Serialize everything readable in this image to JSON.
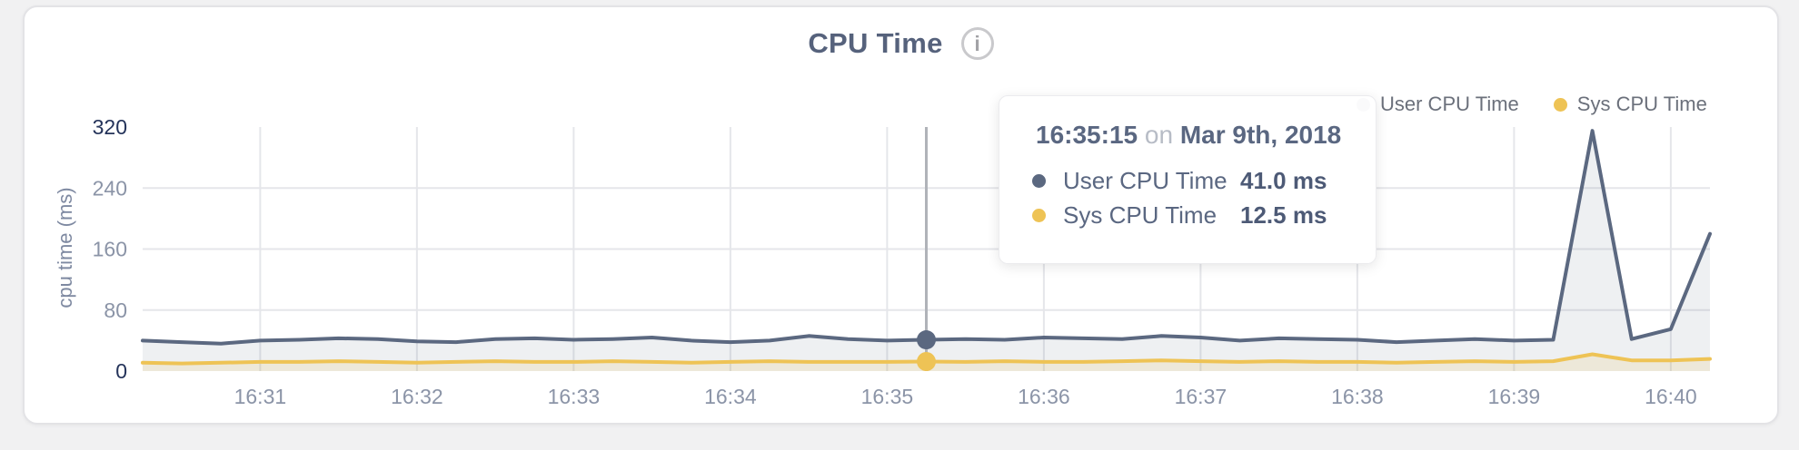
{
  "header": {
    "title": "CPU Time",
    "info_glyph": "i"
  },
  "legend": {
    "items": [
      {
        "label": "User CPU Time",
        "color": "#5b6880"
      },
      {
        "label": "Sys CPU Time",
        "color": "#eec355"
      }
    ]
  },
  "tooltip": {
    "time": "16:35:15",
    "conjunction": "on",
    "date": "Mar 9th, 2018",
    "rows": [
      {
        "label": "User CPU Time",
        "value": "41.0 ms",
        "color": "#5b6880"
      },
      {
        "label": "Sys CPU Time",
        "value": "12.5 ms",
        "color": "#eec355"
      }
    ]
  },
  "chart_data": {
    "type": "line",
    "title": "CPU Time",
    "xlabel": "",
    "ylabel": "cpu time (ms)",
    "ylim": [
      0,
      320
    ],
    "yticks": [
      0,
      80,
      160,
      240,
      320
    ],
    "xticks": [
      "16:31",
      "16:32",
      "16:33",
      "16:34",
      "16:35",
      "16:36",
      "16:37",
      "16:38",
      "16:39",
      "16:40"
    ],
    "grid": true,
    "legend_position": "top-right",
    "x": [
      "16:30:15",
      "16:30:30",
      "16:30:45",
      "16:31:00",
      "16:31:15",
      "16:31:30",
      "16:31:45",
      "16:32:00",
      "16:32:15",
      "16:32:30",
      "16:32:45",
      "16:33:00",
      "16:33:15",
      "16:33:30",
      "16:33:45",
      "16:34:00",
      "16:34:15",
      "16:34:30",
      "16:34:45",
      "16:35:00",
      "16:35:15",
      "16:35:30",
      "16:35:45",
      "16:36:00",
      "16:36:15",
      "16:36:30",
      "16:36:45",
      "16:37:00",
      "16:37:15",
      "16:37:30",
      "16:37:45",
      "16:38:00",
      "16:38:15",
      "16:38:30",
      "16:38:45",
      "16:39:00",
      "16:39:15",
      "16:39:30",
      "16:39:45",
      "16:40:00",
      "16:40:15"
    ],
    "series": [
      {
        "name": "User CPU Time",
        "color": "#5b6880",
        "fill": "rgba(91,104,128,0.10)",
        "values": [
          40,
          38,
          36,
          40,
          41,
          43,
          42,
          39,
          38,
          42,
          43,
          41,
          42,
          44,
          40,
          38,
          40,
          46,
          42,
          40,
          41,
          42,
          41,
          44,
          43,
          42,
          46,
          44,
          40,
          43,
          42,
          41,
          38,
          40,
          42,
          40,
          41,
          315,
          42,
          55,
          180
        ]
      },
      {
        "name": "Sys CPU Time",
        "color": "#eec355",
        "fill": "rgba(238,195,85,0.16)",
        "values": [
          11,
          10,
          11,
          12,
          12,
          13,
          12,
          11,
          12,
          13,
          12,
          12,
          13,
          12,
          11,
          12,
          13,
          12,
          12,
          12,
          12.5,
          12,
          13,
          12,
          12,
          13,
          14,
          13,
          12,
          13,
          12,
          12,
          11,
          12,
          13,
          12,
          13,
          22,
          14,
          14,
          16
        ]
      }
    ],
    "hover": {
      "x": "16:35:15",
      "index": 20,
      "user_value_ms": 41.0,
      "sys_value_ms": 12.5
    },
    "colors": {
      "grid": "#e5e6ea",
      "axis_label": "#8b94a7",
      "axis_label_emphasis": "#24335a",
      "hover_line": "#b0b3b9"
    }
  }
}
